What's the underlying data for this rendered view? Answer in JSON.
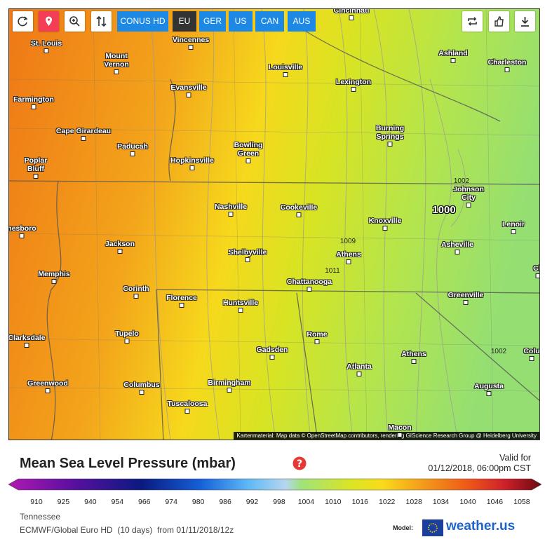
{
  "toolbar": {
    "buttons": [
      "CONUS HD",
      "EU",
      "GER",
      "US",
      "CAN",
      "AUS"
    ]
  },
  "map": {
    "cities": [
      "Cincinnati",
      "Vincennes",
      "St. Louis",
      "Mount Vernon",
      "Ashland",
      "Charleston",
      "Louisville",
      "Lexington",
      "Evansville",
      "Farmington",
      "Cape Girardeau",
      "Burning Springs",
      "Paducah",
      "Bowling Green",
      "Hopkinsville",
      "Poplar Bluff",
      "Johnson City",
      "Nashville",
      "Cookeville",
      "Knoxville",
      "Lenoir",
      "nesboro",
      "Asheville",
      "Jackson",
      "Athens",
      "Shelbyville",
      "Memphis",
      "Chattanooga",
      "Corinth",
      "Greenville",
      "Florence",
      "Huntsville",
      "Tupelo",
      "Rome",
      "Clarksdale",
      "Gadsden",
      "Athens",
      "Colu",
      "Ch",
      "Atlanta",
      "Greenwood",
      "Birmingham",
      "Columbus",
      "Augusta",
      "Tuscaloosa",
      "Macon"
    ],
    "isobar_labels": [
      "1002",
      "1000",
      "1009",
      "1011",
      "1002"
    ],
    "attribution": "Kartenmaterial: Map data © OpenStreetMap contributors, rendering GIScience Research Group @ Heidelberg University"
  },
  "legend": {
    "title": "Mean Sea Level Pressure (mbar)",
    "valid_label": "Valid for",
    "valid_time": "01/12/2018, 06:00pm CST",
    "scale_labels": [
      910,
      925,
      940,
      954,
      966,
      974,
      980,
      986,
      992,
      998,
      1004,
      1010,
      1016,
      1022,
      1028,
      1034,
      1040,
      1046,
      1058
    ],
    "region": "Tennessee",
    "model_run": "ECMWF/Global Euro HD  (10 days)  from 01/11/2018/12z",
    "model_label": "Model:",
    "brand": "weather.us"
  }
}
